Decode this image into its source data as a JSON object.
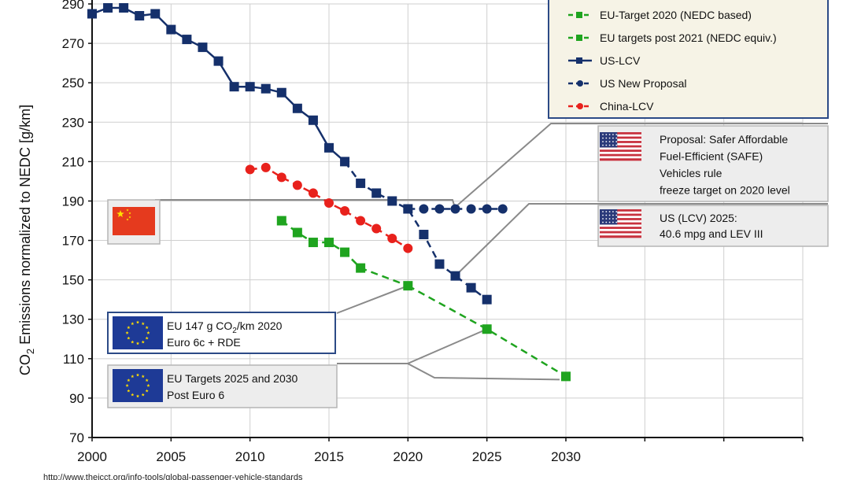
{
  "chart_data": {
    "type": "line",
    "ylabel_prefix": "CO",
    "ylabel_sub": "2",
    "ylabel_rest": " Emissions normalized to NEDC [g/km]",
    "xlim": [
      2000,
      2045
    ],
    "ylim": [
      70,
      290
    ],
    "xticks": [
      2000,
      2005,
      2010,
      2015,
      2020,
      2025,
      2030
    ],
    "yticks": [
      70,
      90,
      110,
      130,
      150,
      170,
      190,
      210,
      230,
      250,
      270,
      290
    ],
    "grid": true,
    "legend_position": "top-right",
    "series": [
      {
        "name": "EU-Target 2020 (NEDC based)",
        "key": "eu2020",
        "color": "#1fa41f",
        "marker": "square",
        "dash": "dash",
        "points": [
          [
            2012,
            180
          ],
          [
            2013,
            174
          ],
          [
            2014,
            169
          ],
          [
            2015,
            169
          ],
          [
            2016,
            164
          ],
          [
            2017,
            156
          ],
          [
            2020,
            147
          ]
        ]
      },
      {
        "name": "EU targets post 2021 (NEDC equiv.)",
        "key": "eupost",
        "color": "#1fa41f",
        "marker": "square",
        "dash": "dash",
        "points": [
          [
            2020,
            147
          ],
          [
            2025,
            125
          ],
          [
            2030,
            101
          ]
        ]
      },
      {
        "name": "US-LCV",
        "key": "uslcv",
        "color": "#15306b",
        "marker": "square",
        "dash": "solid",
        "points": [
          [
            2000,
            285
          ],
          [
            2001,
            288
          ],
          [
            2002,
            288
          ],
          [
            2003,
            284
          ],
          [
            2004,
            285
          ],
          [
            2005,
            277
          ],
          [
            2006,
            272
          ],
          [
            2007,
            268
          ],
          [
            2008,
            261
          ],
          [
            2009,
            248
          ],
          [
            2010,
            248
          ],
          [
            2011,
            247
          ],
          [
            2012,
            245
          ],
          [
            2013,
            237
          ],
          [
            2014,
            231
          ],
          [
            2015,
            217
          ],
          [
            2016,
            210
          ]
        ]
      },
      {
        "name": "US projected (squares, dashed)",
        "key": "usproj",
        "color": "#15306b",
        "marker": "square",
        "dash": "dash",
        "legend": false,
        "points": [
          [
            2016,
            210
          ],
          [
            2017,
            199
          ],
          [
            2018,
            194
          ],
          [
            2019,
            190
          ],
          [
            2020,
            186
          ],
          [
            2021,
            173
          ],
          [
            2022,
            158
          ],
          [
            2023,
            152
          ],
          [
            2024,
            146
          ],
          [
            2025,
            140
          ]
        ]
      },
      {
        "name": "US New Proposal",
        "key": "usnew",
        "color": "#15306b",
        "marker": "circle",
        "dash": "dash",
        "points": [
          [
            2020,
            186
          ],
          [
            2021,
            186
          ],
          [
            2022,
            186
          ],
          [
            2023,
            186
          ],
          [
            2024,
            186
          ],
          [
            2025,
            186
          ],
          [
            2026,
            186
          ]
        ]
      },
      {
        "name": "China-LCV",
        "key": "china",
        "color": "#e8211c",
        "marker": "circle",
        "dash": "dash",
        "points": [
          [
            2010,
            206
          ],
          [
            2011,
            207
          ],
          [
            2012,
            202
          ],
          [
            2013,
            198
          ],
          [
            2014,
            194
          ],
          [
            2015,
            189
          ],
          [
            2016,
            185
          ],
          [
            2017,
            180
          ],
          [
            2018,
            176
          ],
          [
            2019,
            171
          ],
          [
            2020,
            166
          ]
        ]
      }
    ],
    "annotations": [
      {
        "key": "safe",
        "lines": [
          "Proposal: Safer Affordable",
          "Fuel-Efficient (SAFE)",
          "Vehicles rule",
          "freeze target on 2020 level"
        ],
        "flag": "us",
        "point": [
          2023,
          186
        ]
      },
      {
        "key": "us2025",
        "lines": [
          "US (LCV) 2025:",
          "40.6 mpg and LEV III"
        ],
        "flag": "us",
        "point": [
          2023,
          152
        ]
      },
      {
        "key": "cn",
        "lines": [],
        "flag": "cn",
        "point": [
          2020,
          190
        ]
      },
      {
        "key": "eu2020box",
        "line1_a": "EU  147 g CO",
        "line1_sub": "2",
        "line1_b": "/km 2020",
        "line2": "Euro 6c + RDE",
        "flag": "eu",
        "point": [
          2020,
          147
        ]
      },
      {
        "key": "eupostbox",
        "lines": [
          "EU Targets  2025 and 2030",
          "Post Euro 6"
        ],
        "flag": "eu",
        "points": [
          [
            2025,
            125
          ],
          [
            2030,
            101
          ]
        ]
      }
    ]
  },
  "source_url": "http://www.theicct.org/info-tools/global-passenger-vehicle-standards"
}
